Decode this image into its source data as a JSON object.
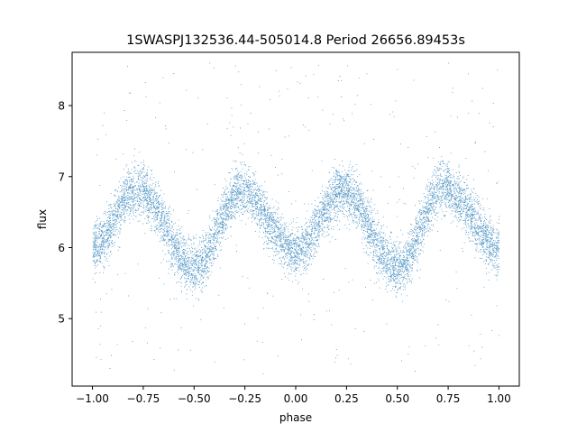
{
  "chart_data": {
    "type": "scatter",
    "title": "1SWASPJ132536.44-505014.8 Period 26656.89453s",
    "xlabel": "phase",
    "ylabel": "flux",
    "xlim": [
      -1.1,
      1.1
    ],
    "ylim": [
      4.05,
      8.75
    ],
    "xticks": [
      -1.0,
      -0.75,
      -0.5,
      -0.25,
      0.0,
      0.25,
      0.5,
      0.75,
      1.0
    ],
    "xtick_labels": [
      "−1.00",
      "−0.75",
      "−0.50",
      "−0.25",
      "0.00",
      "0.25",
      "0.50",
      "0.75",
      "1.00"
    ],
    "yticks": [
      5,
      6,
      7,
      8
    ],
    "ytick_labels": [
      "5",
      "6",
      "7",
      "8"
    ],
    "grid": false,
    "marker_color": "#1f77b4",
    "light_curve": {
      "mean_flux": 6.3,
      "primary_maxima": [
        {
          "phase": -0.78,
          "flux": 6.82
        },
        {
          "phase": -0.27,
          "flux": 6.8
        },
        {
          "phase": 0.23,
          "flux": 6.8
        },
        {
          "phase": 0.73,
          "flux": 6.85
        }
      ],
      "minima": [
        {
          "phase": -1.0,
          "flux": 6.0
        },
        {
          "phase": -0.5,
          "flux": 5.72
        },
        {
          "phase": 0.0,
          "flux": 5.95
        },
        {
          "phase": 0.5,
          "flux": 5.72
        },
        {
          "phase": 1.0,
          "flux": 6.0
        }
      ],
      "scatter_sigma": 0.18,
      "outlier_range": [
        4.2,
        8.6
      ]
    }
  }
}
